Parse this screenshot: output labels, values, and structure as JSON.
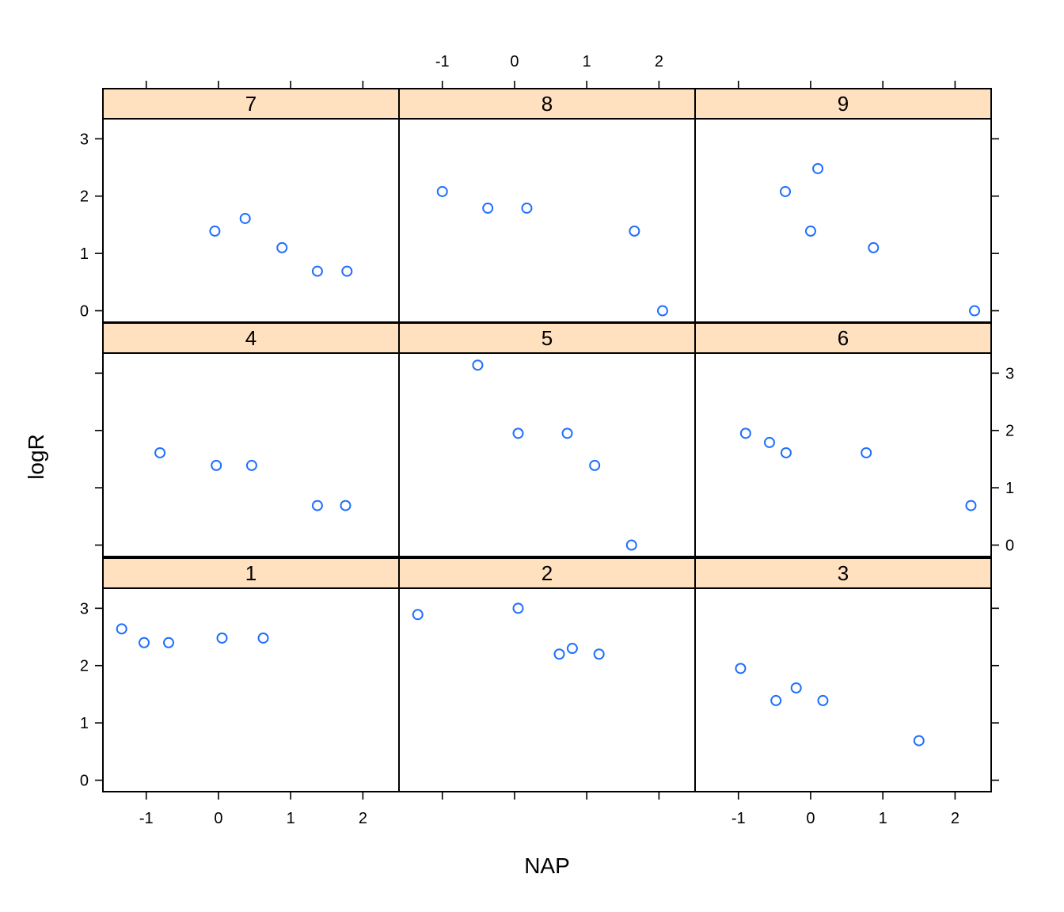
{
  "chart_data": {
    "type": "scatter",
    "layout": "lattice 3x3",
    "xlabel": "NAP",
    "ylabel": "logR",
    "xlim": [
      -1.6,
      2.5
    ],
    "ylim": [
      -0.2,
      3.35
    ],
    "x_ticks": [
      -1,
      0,
      1,
      2
    ],
    "y_ticks": [
      0,
      1,
      2,
      3
    ],
    "point_color": "#1f6fff",
    "strip_color": "#ffe0bf",
    "panels": [
      {
        "label": "7",
        "row": 0,
        "col": 0,
        "points": [
          [
            -0.05,
            1.39
          ],
          [
            0.37,
            1.61
          ],
          [
            0.88,
            1.1
          ],
          [
            1.37,
            0.69
          ],
          [
            1.78,
            0.69
          ]
        ]
      },
      {
        "label": "8",
        "row": 0,
        "col": 1,
        "points": [
          [
            -1.0,
            2.08
          ],
          [
            -0.37,
            1.79
          ],
          [
            0.17,
            1.79
          ],
          [
            1.66,
            1.39
          ],
          [
            2.05,
            0.0
          ]
        ]
      },
      {
        "label": "9",
        "row": 0,
        "col": 2,
        "points": [
          [
            -0.35,
            2.08
          ],
          [
            0.1,
            2.48
          ],
          [
            0.0,
            1.39
          ],
          [
            0.87,
            1.1
          ],
          [
            2.27,
            0.0
          ]
        ]
      },
      {
        "label": "4",
        "row": 1,
        "col": 0,
        "points": [
          [
            -0.81,
            1.61
          ],
          [
            -0.03,
            1.39
          ],
          [
            0.46,
            1.39
          ],
          [
            1.37,
            0.69
          ],
          [
            1.76,
            0.69
          ]
        ]
      },
      {
        "label": "5",
        "row": 1,
        "col": 1,
        "points": [
          [
            -0.51,
            3.14
          ],
          [
            0.05,
            1.95
          ],
          [
            0.73,
            1.95
          ],
          [
            1.11,
            1.39
          ],
          [
            1.62,
            0.0
          ]
        ]
      },
      {
        "label": "6",
        "row": 1,
        "col": 2,
        "points": [
          [
            -0.9,
            1.95
          ],
          [
            -0.57,
            1.79
          ],
          [
            -0.34,
            1.61
          ],
          [
            0.77,
            1.61
          ],
          [
            2.22,
            0.69
          ]
        ]
      },
      {
        "label": "1",
        "row": 2,
        "col": 0,
        "points": [
          [
            -1.34,
            2.64
          ],
          [
            -1.03,
            2.4
          ],
          [
            -0.69,
            2.4
          ],
          [
            0.05,
            2.48
          ],
          [
            0.62,
            2.48
          ]
        ]
      },
      {
        "label": "2",
        "row": 2,
        "col": 1,
        "points": [
          [
            -1.34,
            2.89
          ],
          [
            0.05,
            3.0
          ],
          [
            0.62,
            2.2
          ],
          [
            0.8,
            2.3
          ],
          [
            1.17,
            2.2
          ]
        ]
      },
      {
        "label": "3",
        "row": 2,
        "col": 2,
        "points": [
          [
            -0.97,
            1.95
          ],
          [
            -0.48,
            1.39
          ],
          [
            -0.2,
            1.61
          ],
          [
            0.17,
            1.39
          ],
          [
            1.5,
            0.69
          ]
        ]
      }
    ]
  }
}
